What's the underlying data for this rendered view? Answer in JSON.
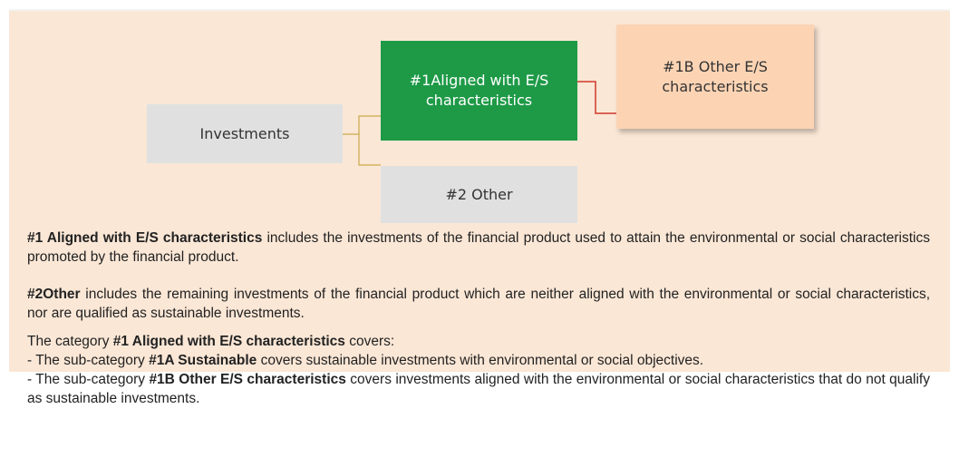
{
  "nodes": [
    {
      "label": "Investments"
    },
    {
      "label": "#1Aligned with E/S characteristics"
    },
    {
      "label": "#1B Other E/S characteristics"
    },
    {
      "label": "#2 Other"
    }
  ],
  "paragraphs": [
    [
      {
        "text": "#1 Aligned with E/S characteristics",
        "bold": true
      },
      {
        "text": " includes the investments of the financial product used to attain the environmental or social characteristics promoted by the financial product.",
        "bold": false
      }
    ],
    [
      {
        "text": "#2Other",
        "bold": true
      },
      {
        "text": " includes the remaining investments of the financial product which are neither aligned with the environmental or social characteristics, nor are qualified as sustainable investments.",
        "bold": false
      }
    ],
    [
      {
        "text": "The category ",
        "bold": false
      },
      {
        "text": "#1 Aligned with E/S characteristics",
        "bold": true
      },
      {
        "text": " covers:",
        "bold": false
      }
    ],
    [
      {
        "text": "- The sub-category ",
        "bold": false
      },
      {
        "text": "#1A Sustainable",
        "bold": true
      },
      {
        "text": " covers sustainable investments with environmental or social objectives.",
        "bold": false
      }
    ],
    [
      {
        "text": "- The sub-category ",
        "bold": false
      },
      {
        "text": "#1B Other E/S characteristics",
        "bold": true
      },
      {
        "text": " covers investments aligned with the environmental or social characteristics that do not qualify as sustainable investments.",
        "bold": false
      }
    ]
  ]
}
